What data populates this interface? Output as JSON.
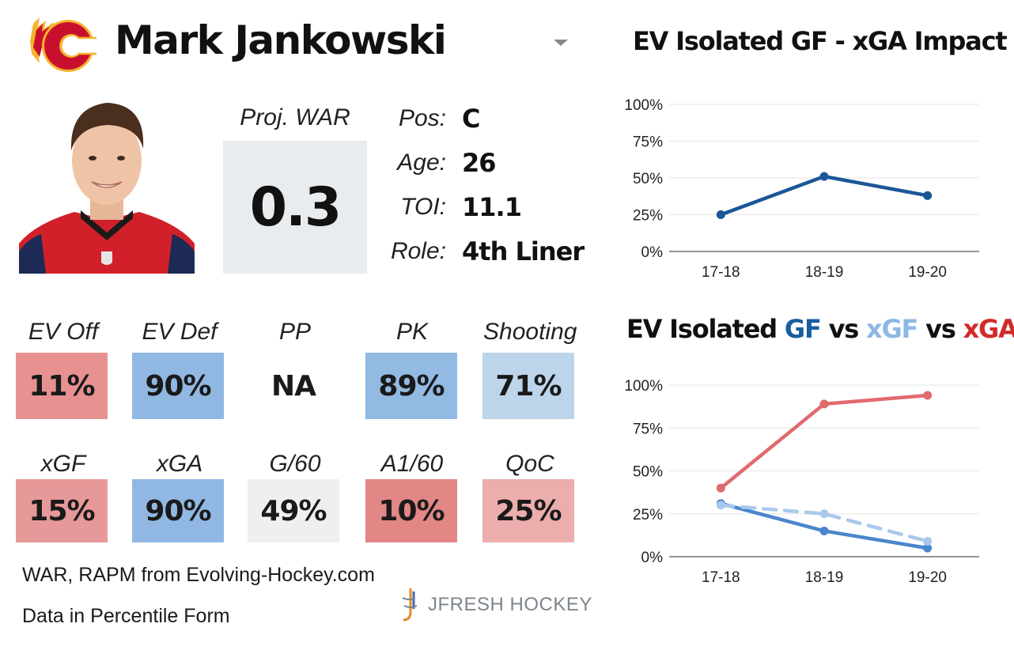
{
  "player": {
    "name": "Mark Jankowski",
    "war_label": "Proj. WAR",
    "war_value": "0.3",
    "info": [
      {
        "label": "Pos:",
        "value": "C"
      },
      {
        "label": "Age:",
        "value": "26"
      },
      {
        "label": "TOI:",
        "value": "11.1"
      },
      {
        "label": "Role:",
        "value": "4th Liner"
      }
    ]
  },
  "stats_row1": [
    {
      "label": "EV Off",
      "value": "11%",
      "color": "#e79191"
    },
    {
      "label": "EV Def",
      "value": "90%",
      "color": "#90b8e2"
    },
    {
      "label": "PP",
      "value": "NA",
      "color": "#ffffff"
    },
    {
      "label": "PK",
      "value": "89%",
      "color": "#92bae3"
    },
    {
      "label": "Shooting",
      "value": "71%",
      "color": "#bdd5ea"
    }
  ],
  "stats_row2": [
    {
      "label": "xGF",
      "value": "15%",
      "color": "#e79898"
    },
    {
      "label": "xGA",
      "value": "90%",
      "color": "#90b8e2"
    },
    {
      "label": "G/60",
      "value": "49%",
      "color": "#efefef"
    },
    {
      "label": "A1/60",
      "value": "10%",
      "color": "#e38686"
    },
    {
      "label": "QoC",
      "value": "25%",
      "color": "#ecadad"
    }
  ],
  "footer": {
    "source": "WAR, RAPM from  Evolving-Hockey.com",
    "note": "Data in Percentile Form",
    "brand": "JFRESH HOCKEY"
  },
  "chart1_title": "EV Isolated GF - xGA Impact",
  "chart2_title": {
    "p1": "EV Isolated ",
    "gf": "GF",
    "p2": " vs ",
    "xgf": "xGF",
    "p3": " vs ",
    "xga": "xGA"
  },
  "colors": {
    "gf": "#1a5da0",
    "xgf": "#8db8e5",
    "xga": "#d22a2a",
    "chart1_line": "#1b5797",
    "chart2_gf": "#4a86cc",
    "chart2_xgf": "#a9c9ec",
    "chart2_xga": "#e06a6e"
  },
  "chart_data": [
    {
      "type": "line",
      "title": "EV Isolated GF - xGA Impact",
      "categories": [
        "17-18",
        "18-19",
        "19-20"
      ],
      "series": [
        {
          "values": [
            25,
            51,
            38
          ]
        }
      ],
      "yticks": [
        "0%",
        "25%",
        "50%",
        "75%",
        "100%"
      ],
      "ylim": [
        0,
        100
      ],
      "grid": true
    },
    {
      "type": "line",
      "title": "EV Isolated GF vs xGF vs xGA",
      "categories": [
        "17-18",
        "18-19",
        "19-20"
      ],
      "series": [
        {
          "name": "GF",
          "values": [
            31,
            15,
            5
          ],
          "dash": false
        },
        {
          "name": "xGF",
          "values": [
            30,
            25,
            9
          ],
          "dash": true
        },
        {
          "name": "xGA",
          "values": [
            40,
            89,
            94
          ],
          "dash": false
        }
      ],
      "yticks": [
        "0%",
        "25%",
        "50%",
        "75%",
        "100%"
      ],
      "ylim": [
        0,
        100
      ],
      "grid": true
    }
  ]
}
